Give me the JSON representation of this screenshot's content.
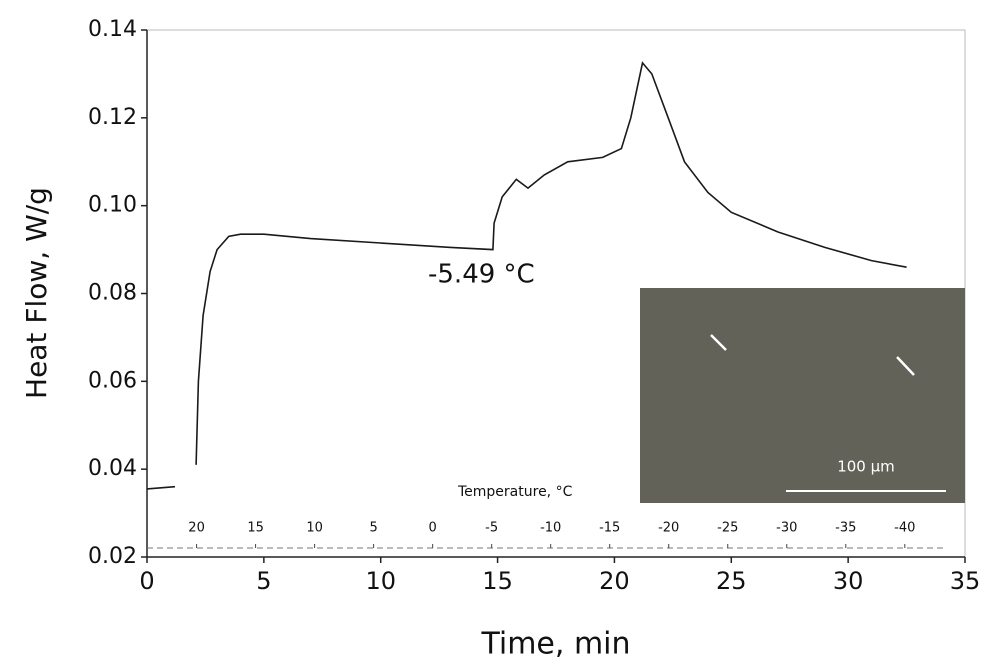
{
  "chart_data": {
    "type": "line",
    "xlabel": "Time, min",
    "ylabel": "Heat Flow, W/g",
    "x": [
      0,
      1.2,
      1.6,
      2.1,
      2.2,
      2.4,
      2.7,
      3.0,
      3.5,
      4,
      5,
      7,
      10,
      13,
      14.8,
      14.85,
      15.2,
      15.8,
      16.3,
      17,
      18,
      19.5,
      20.3,
      20.7,
      21.2,
      21.6,
      22.3,
      23,
      24,
      25,
      27,
      29,
      31,
      32.5
    ],
    "values": [
      0.0355,
      0.036,
      null,
      0.041,
      0.06,
      0.075,
      0.085,
      0.09,
      0.093,
      0.0935,
      0.0935,
      0.0925,
      0.0915,
      0.0905,
      0.09,
      0.096,
      0.102,
      0.106,
      0.104,
      0.107,
      0.11,
      0.111,
      0.113,
      0.12,
      0.1325,
      0.13,
      0.12,
      0.11,
      0.103,
      0.0985,
      0.094,
      0.0905,
      0.0875,
      0.086
    ],
    "color": "#1a1a1a",
    "xlim": [
      0,
      35
    ],
    "xticks": [
      0,
      5,
      10,
      15,
      20,
      25,
      30,
      35
    ],
    "ylim": [
      0.02,
      0.14
    ],
    "yticks": [
      0.02,
      0.04,
      0.06,
      0.08,
      {
        "value": 0.1,
        "label": "0.10"
      },
      0.12,
      0.14
    ],
    "annotation": "-5.49 °C",
    "temperature_axis": {
      "label": "Temperature, °C",
      "lim": [
        24.2,
        -45.1
      ],
      "ticks": [
        20,
        15,
        10,
        5,
        0,
        -5,
        -10,
        -15,
        -20,
        -25,
        -30,
        -35,
        -40
      ]
    },
    "inset": {
      "scale_bar": "100 µm"
    }
  }
}
